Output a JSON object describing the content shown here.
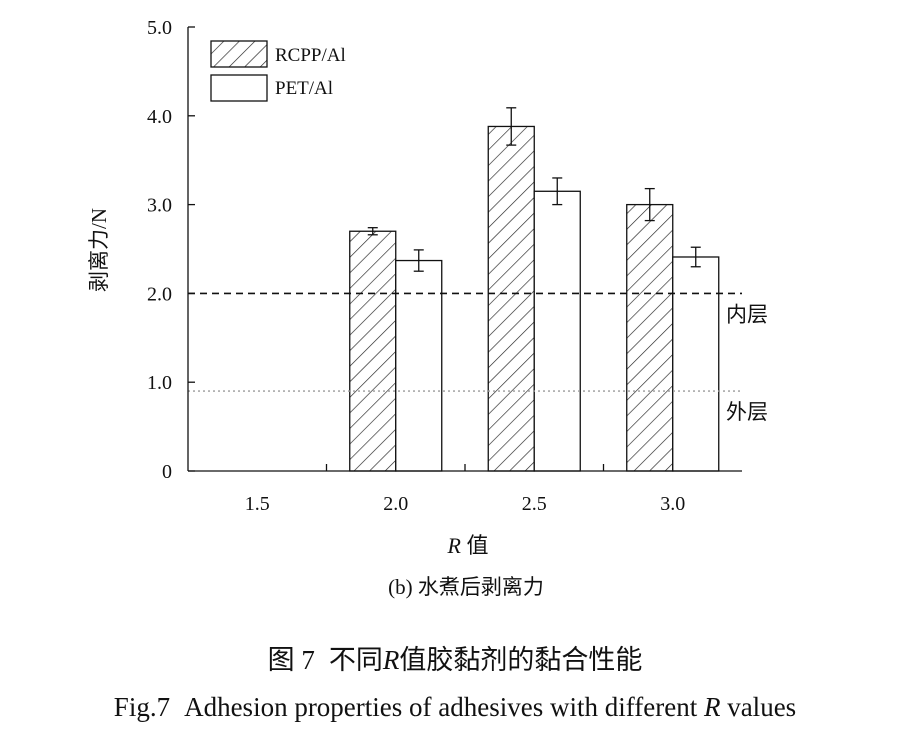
{
  "chart_data": {
    "type": "bar",
    "subtitle": "(b) 水煮后剥离力",
    "xlabel_italic": "R",
    "xlabel_rest": " 值",
    "ylabel": "剥离力/N",
    "ylim": [
      0,
      5.0
    ],
    "yticks": [
      "0",
      "1.0",
      "2.0",
      "3.0",
      "4.0",
      "5.0"
    ],
    "categories": [
      "1.5",
      "2.0",
      "2.5",
      "3.0"
    ],
    "legend_position": "top-left",
    "grid": false,
    "series": [
      {
        "name": "RCPP/Al",
        "pattern": "hatched",
        "values": [
          null,
          2.7,
          3.88,
          3.0
        ],
        "errors": [
          null,
          0.04,
          0.21,
          0.18
        ]
      },
      {
        "name": "PET/Al",
        "pattern": "plain",
        "values": [
          null,
          2.37,
          3.15,
          2.41
        ],
        "errors": [
          null,
          0.12,
          0.15,
          0.11
        ]
      }
    ],
    "reference_lines": [
      {
        "value": 2.0,
        "label": "内层",
        "style": "dashed",
        "color": "#111111"
      },
      {
        "value": 0.9,
        "label": "外层",
        "style": "dotted",
        "color": "#9a9a9a"
      }
    ]
  },
  "caption": {
    "cn_prefix": "图 7",
    "cn_before": "不同",
    "cn_italic": "R",
    "cn_after": "值胶黏剂的黏合性能",
    "en_prefix": "Fig.7",
    "en_before": "Adhesion properties of adhesives with different ",
    "en_italic": "R",
    "en_after": " values"
  }
}
